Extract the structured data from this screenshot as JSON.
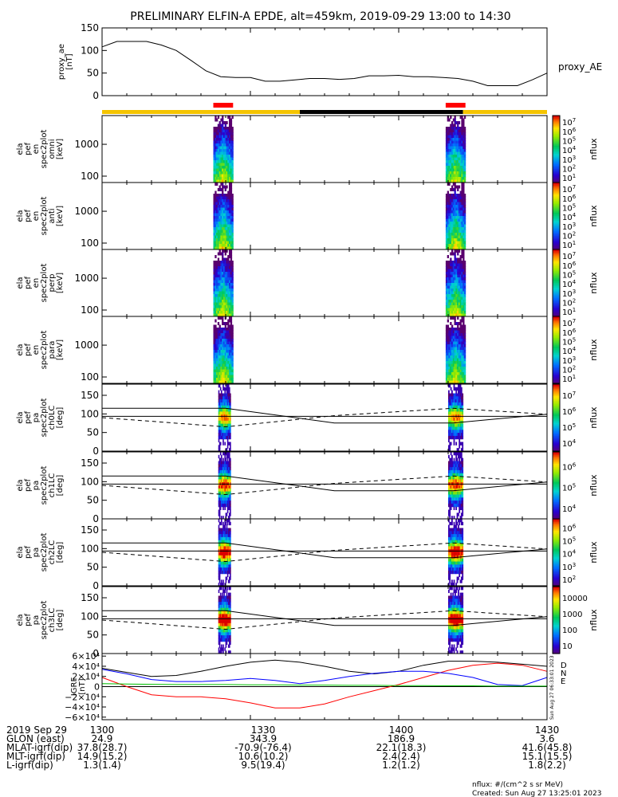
{
  "title": "PRELIMINARY ELFIN-A EPDE, alt=459km, 2019-09-29 13:00 to 14:30",
  "created": "Created: Sun Aug 27 13:25:01 2023",
  "nflux_units": "nflux: #/(cm^2 s sr MeV)",
  "side_timestamp": "Sun Aug 27 06:33:01 2023",
  "colors": {
    "sci_bar": "#f5c400",
    "shadow_bar": "#000000",
    "collection_bar": "#ff0000",
    "bx": "#ff0000",
    "by": "#0000ff",
    "bz": "#00c000",
    "btot": "#000000"
  },
  "chart_data": [
    {
      "type": "line",
      "name": "proxy_ae",
      "ylabel": "proxy_ae\n[nT]",
      "legend": "proxy_AE",
      "ylim": [
        0,
        150
      ],
      "yticks": [
        "0",
        "50",
        "100",
        "150"
      ],
      "x_minutes": [
        0,
        3,
        6,
        9,
        12,
        15,
        18,
        21,
        24,
        27,
        30,
        33,
        36,
        39,
        42,
        45,
        48,
        51,
        54,
        57,
        60,
        63,
        66,
        69,
        72,
        75,
        78,
        81,
        84,
        87,
        90
      ],
      "values": [
        108,
        120,
        120,
        120,
        112,
        100,
        78,
        55,
        42,
        40,
        40,
        32,
        32,
        35,
        38,
        38,
        36,
        38,
        44,
        44,
        45,
        42,
        42,
        40,
        38,
        32,
        22,
        22,
        22,
        35,
        50
      ]
    },
    {
      "type": "bar",
      "name": "science_zone_bar",
      "segments": [
        {
          "from": 0,
          "to": 40,
          "color": "#f5c400"
        },
        {
          "from": 40,
          "to": 73,
          "color": "#000000"
        },
        {
          "from": 73,
          "to": 90,
          "color": "#f5c400"
        }
      ],
      "collection_intervals": [
        [
          22.5,
          26.5
        ],
        [
          69.5,
          73.5
        ]
      ]
    },
    {
      "type": "heatmap",
      "name": "spec-omni",
      "ylabel": "ela\npef\nen\nspec2plot\nomni\n[keV]",
      "yscale": "log",
      "ylim": [
        63,
        8000
      ],
      "yticks": [
        "100",
        "1000"
      ],
      "colorbar": {
        "label": "nflux",
        "min_exp": 1,
        "max_exp": 7,
        "ticks": [
          "10^1",
          "10^2",
          "10^3",
          "10^4",
          "10^5",
          "10^6",
          "10^7"
        ]
      },
      "passes": [
        {
          "start": 22.5,
          "end": 26.5
        },
        {
          "start": 69.5,
          "end": 73.5
        }
      ]
    },
    {
      "type": "heatmap",
      "name": "spec-anti",
      "ylabel": "ela\npef\nen\nspec2plot\nanti\n[keV]",
      "yscale": "log",
      "ylim": [
        63,
        8000
      ],
      "yticks": [
        "100",
        "1000"
      ],
      "colorbar": {
        "label": "nflux",
        "min_exp": 1,
        "max_exp": 7,
        "ticks": [
          "10^1",
          "10^2",
          "10^3",
          "10^4",
          "10^5",
          "10^6",
          "10^7"
        ]
      },
      "passes": [
        {
          "start": 22.5,
          "end": 26.5
        },
        {
          "start": 69.5,
          "end": 73.5
        }
      ]
    },
    {
      "type": "heatmap",
      "name": "spec-perp",
      "ylabel": "ela\npef\nen\nspec2plot\nperp\n[keV]",
      "yscale": "log",
      "ylim": [
        63,
        8000
      ],
      "yticks": [
        "100",
        "1000"
      ],
      "colorbar": {
        "label": "nflux",
        "min_exp": 1,
        "max_exp": 7,
        "ticks": [
          "10^1",
          "10^2",
          "10^3",
          "10^4",
          "10^5",
          "10^6",
          "10^7"
        ]
      },
      "passes": [
        {
          "start": 22.5,
          "end": 26.5
        },
        {
          "start": 69.5,
          "end": 73.5
        }
      ]
    },
    {
      "type": "heatmap",
      "name": "spec-para",
      "ylabel": "ela\npef\nen\nspec2plot\npara\n[keV]",
      "yscale": "log",
      "ylim": [
        63,
        8000
      ],
      "yticks": [
        "100",
        "1000"
      ],
      "colorbar": {
        "label": "nflux",
        "min_exp": 1,
        "max_exp": 7,
        "ticks": [
          "10^1",
          "10^2",
          "10^3",
          "10^4",
          "10^5",
          "10^6",
          "10^7"
        ]
      },
      "passes": [
        {
          "start": 22.5,
          "end": 26.5
        },
        {
          "start": 69.5,
          "end": 73.5
        }
      ]
    },
    {
      "type": "heatmap",
      "name": "pa-ch0",
      "ylabel": "ela\npef\npa\nspec2plot\nch0LC\n[deg]",
      "ylim": [
        0,
        180
      ],
      "yticks": [
        "0",
        "50",
        "100",
        "150"
      ],
      "colorbar": {
        "label": "nflux",
        "min_exp": 3,
        "max_exp": 7,
        "ticks": [
          "10^4",
          "10^5",
          "10^6",
          "10^7"
        ]
      },
      "passes": [
        {
          "start": 23.5,
          "end": 26.0
        },
        {
          "start": 70.0,
          "end": 73.0
        }
      ]
    },
    {
      "type": "heatmap",
      "name": "pa-ch1",
      "ylabel": "ela\npef\npa\nspec2plot\nch1LC\n[deg]",
      "ylim": [
        0,
        180
      ],
      "yticks": [
        "0",
        "50",
        "100",
        "150"
      ],
      "colorbar": {
        "label": "nflux",
        "min_exp": 3,
        "max_exp": 7,
        "ticks": [
          "10^4",
          "10^5",
          "10^6"
        ]
      },
      "passes": [
        {
          "start": 23.5,
          "end": 26.0
        },
        {
          "start": 70.0,
          "end": 73.0
        }
      ]
    },
    {
      "type": "heatmap",
      "name": "pa-ch2",
      "ylabel": "ela\npef\npa\nspec2plot\nch2LC\n[deg]",
      "ylim": [
        0,
        180
      ],
      "yticks": [
        "0",
        "50",
        "100",
        "150"
      ],
      "colorbar": {
        "label": "nflux",
        "min_exp": 2,
        "max_exp": 6,
        "ticks": [
          "10^2",
          "10^3",
          "10^4",
          "10^5",
          "10^6"
        ]
      },
      "passes": [
        {
          "start": 23.5,
          "end": 26.0
        },
        {
          "start": 70.0,
          "end": 73.0
        }
      ]
    },
    {
      "type": "heatmap",
      "name": "pa-ch3",
      "ylabel": "ela\npef\npa\nspec2plot\nch3LC\n[deg]",
      "ylim": [
        0,
        180
      ],
      "yticks": [
        "0",
        "50",
        "100",
        "150"
      ],
      "colorbar": {
        "label": "nflux",
        "min_exp": 1,
        "max_exp": 4,
        "ticks": [
          "10",
          "100",
          "1000",
          "10000"
        ]
      },
      "passes": [
        {
          "start": 23.5,
          "end": 26.0
        },
        {
          "start": 70.0,
          "end": 73.0
        }
      ]
    },
    {
      "type": "line",
      "name": "igrf",
      "ylabel": "IGRF\n[nT]",
      "ylim": [
        -65000,
        65000
      ],
      "yticks": [
        {
          "v": 60000,
          "label": "6×10⁴"
        },
        {
          "v": 40000,
          "label": "4×10⁴"
        },
        {
          "v": 20000,
          "label": "2×10⁴"
        },
        {
          "v": 0,
          "label": "0"
        },
        {
          "v": -20000,
          "label": "−2×10⁴"
        },
        {
          "v": -40000,
          "label": "−4×10⁴"
        },
        {
          "v": -60000,
          "label": "−6×10⁴"
        }
      ],
      "legend": [
        "D",
        "N",
        "E"
      ],
      "x_minutes": [
        0,
        5,
        10,
        15,
        20,
        25,
        30,
        35,
        40,
        45,
        50,
        55,
        60,
        65,
        70,
        75,
        80,
        85,
        90
      ],
      "series": [
        {
          "name": "black",
          "color": "#000000",
          "values": [
            36000,
            28000,
            20000,
            22000,
            30000,
            40000,
            48000,
            52000,
            48000,
            40000,
            30000,
            25000,
            30000,
            42000,
            50000,
            50000,
            48000,
            44000,
            40000
          ]
        },
        {
          "name": "D",
          "color": "#ff0000",
          "values": [
            18000,
            0,
            -16000,
            -20000,
            -20000,
            -24000,
            -32000,
            -42000,
            -42000,
            -34000,
            -20000,
            -8000,
            4000,
            18000,
            32000,
            42000,
            46000,
            42000,
            30000
          ]
        },
        {
          "name": "N",
          "color": "#0000ff",
          "values": [
            34000,
            25000,
            14000,
            10000,
            10000,
            12000,
            16000,
            12000,
            6000,
            12000,
            20000,
            26000,
            30000,
            30000,
            26000,
            18000,
            4000,
            2000,
            18000
          ]
        },
        {
          "name": "E",
          "color": "#00c000",
          "values": [
            6000,
            5000,
            4500,
            4000,
            4000,
            4000,
            3500,
            3500,
            3000,
            3000,
            2500,
            2500,
            2000,
            2000,
            1500,
            1500,
            1000,
            1000,
            1000
          ]
        }
      ]
    },
    {
      "type": "table",
      "name": "orbit-table",
      "x_ticks": [
        "1300",
        "1330",
        "1400",
        "1430"
      ],
      "rows": [
        {
          "label": "2019 Sep 29",
          "values": [
            "1300",
            "1330",
            "1400",
            "1430"
          ]
        },
        {
          "label": "GLON (east)",
          "values": [
            "24.9",
            "343.9",
            "186.9",
            "3.6"
          ]
        },
        {
          "label": "MLAT-igrf(dip)",
          "values": [
            "37.8(28.7)",
            "-70.9(-76.4)",
            "22.1(18.3)",
            "41.6(45.8)"
          ]
        },
        {
          "label": "MLT-igrf(dip)",
          "values": [
            "14.9(15.2)",
            "10.6(10.2)",
            "2.4(2.4)",
            "15.1(15.5)"
          ]
        },
        {
          "label": "L-igrf(dip)",
          "values": [
            "1.3(1.4)",
            "9.5(19.4)",
            "1.2(1.2)",
            "1.8(2.2)"
          ]
        }
      ]
    }
  ]
}
